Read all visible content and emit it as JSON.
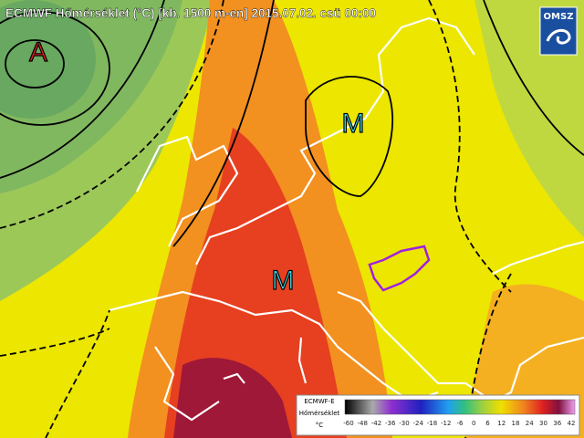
{
  "header": {
    "title": "ECMWF Hőmérséklet (°C) [kb. 1500 m-en] 2015.07.02. csü 00:00",
    "logo": "OMSZ"
  },
  "map_labels": [
    {
      "label": "A"
    },
    {
      "label": "M"
    },
    {
      "label": "M"
    }
  ],
  "legend": {
    "source": "ECMWF-E",
    "variable": "Hőmérséklet",
    "unit": "°C",
    "ticks": [
      -60,
      -48,
      -42,
      -36,
      -30,
      -24,
      -18,
      -12,
      -6,
      0,
      6,
      12,
      18,
      24,
      30,
      36,
      42
    ]
  }
}
